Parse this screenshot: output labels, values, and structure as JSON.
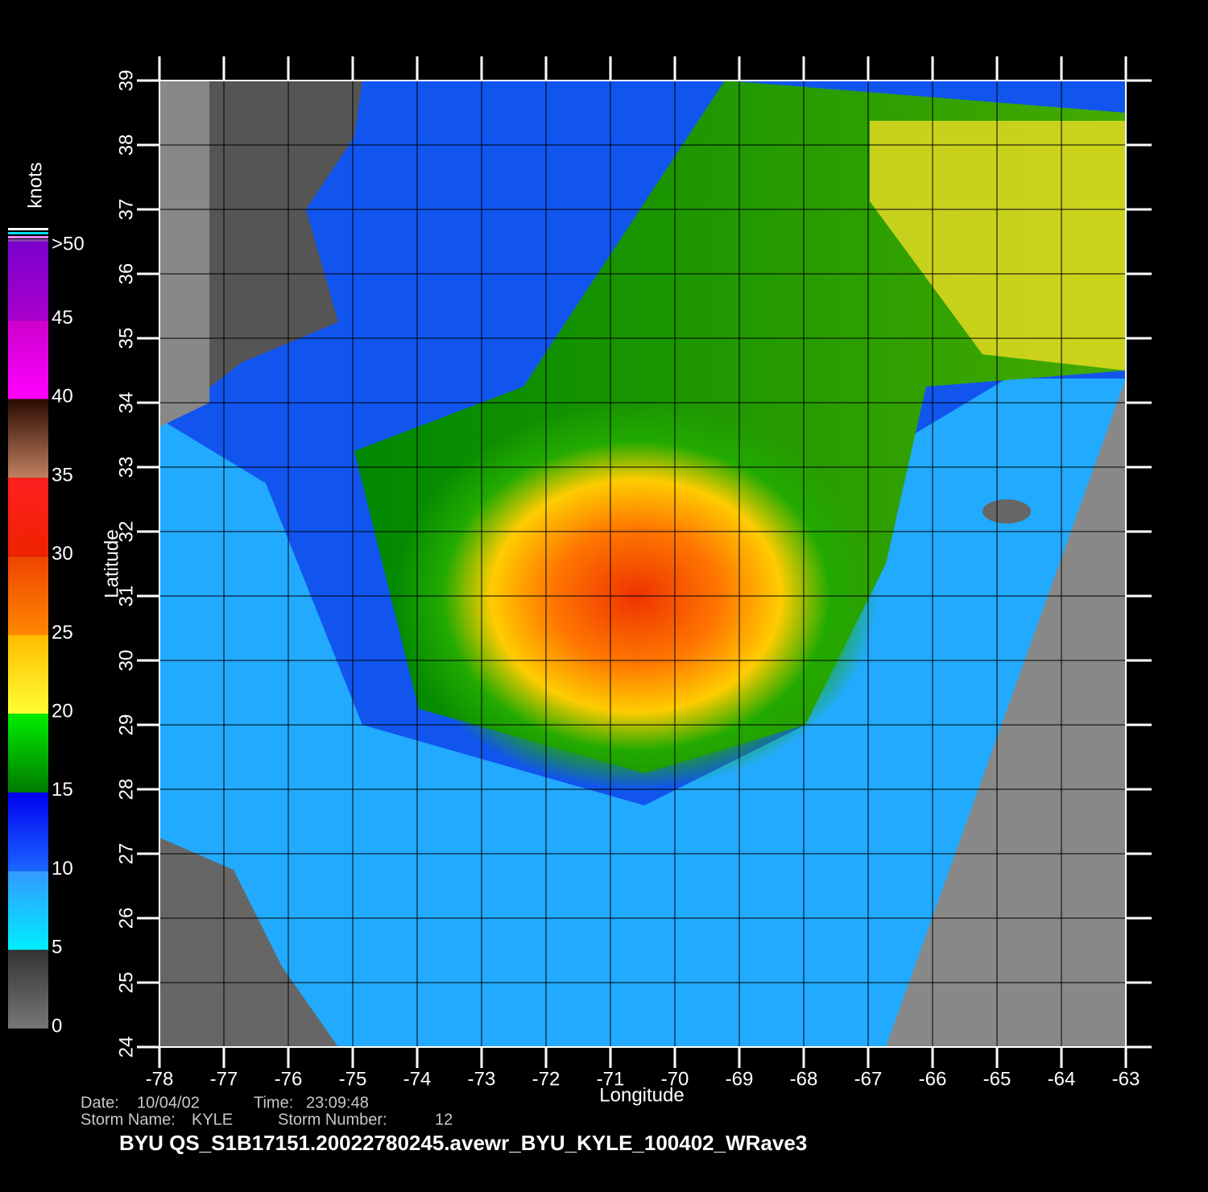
{
  "map": {
    "xlabel": "Longitude",
    "ylabel": "Latitude",
    "xlim": [
      -78,
      -63
    ],
    "ylim": [
      24,
      39
    ],
    "xticks": [
      -78,
      -77,
      -76,
      -75,
      -74,
      -73,
      -72,
      -71,
      -70,
      -69,
      -68,
      -67,
      -66,
      -65,
      -64,
      -63
    ],
    "yticks": [
      24,
      25,
      26,
      27,
      28,
      29,
      30,
      31,
      32,
      33,
      34,
      35,
      36,
      37,
      38,
      39
    ]
  },
  "colorbar": {
    "unit": "knots",
    "ticks": [
      0,
      5,
      10,
      15,
      20,
      25,
      30,
      35,
      40,
      45,
      {
        "value": 50,
        "label": ">50"
      }
    ],
    "colors": [
      [
        "#777777",
        "#333333"
      ],
      [
        "#00eeff",
        "#3399ff"
      ],
      [
        "#1a66ff",
        "#0000ee"
      ],
      [
        "#007a00",
        "#00ee00"
      ],
      [
        "#ffff33",
        "#ffbb00"
      ],
      [
        "#ff8800",
        "#ee4400"
      ],
      [
        "#ee2200",
        "#ff2020"
      ],
      [
        "#c08060",
        "#2a0a00"
      ],
      [
        "#ff00ff",
        "#cc00cc"
      ],
      [
        "#aa00cc",
        "#7a00cc"
      ]
    ]
  },
  "footer": {
    "date_label": "Date:",
    "date": "10/04/02",
    "time_label": "Time:",
    "time": "23:09:48",
    "storm_name_label": "Storm Name:",
    "storm_name": "KYLE",
    "storm_number_label": "Storm Number:",
    "storm_number": "12",
    "title": "BYU  QS_S1B17151.20022780245.avewr_BYU_KYLE_100402_WRave3"
  }
}
